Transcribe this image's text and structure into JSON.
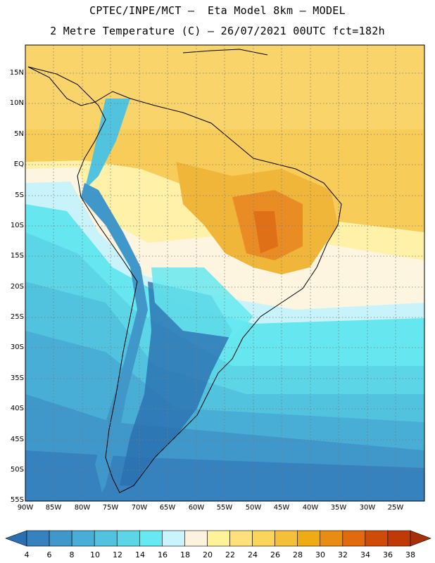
{
  "header": {
    "line1": "CPTEC/INPE/MCT –  Eta Model 8km – MODEL",
    "line2": "2 Metre Temperature (C) – 26/07/2021 00UTC fct=182h"
  },
  "map": {
    "lat_labels": [
      "15N",
      "10N",
      "5N",
      "EQ",
      "5S",
      "10S",
      "15S",
      "20S",
      "25S",
      "30S",
      "35S",
      "40S",
      "45S",
      "50S",
      "55S"
    ],
    "lon_labels": [
      "90W",
      "85W",
      "80W",
      "75W",
      "70W",
      "65W",
      "60W",
      "55W",
      "50W",
      "45W",
      "40W",
      "35W",
      "30W",
      "25W"
    ],
    "gridlines": "dotted"
  },
  "colorbar": {
    "ticks": [
      "4",
      "6",
      "8",
      "10",
      "12",
      "14",
      "16",
      "18",
      "20",
      "22",
      "24",
      "26",
      "28",
      "30",
      "32",
      "34",
      "36",
      "38"
    ],
    "colors": [
      "#2b6fb0",
      "#3582be",
      "#3f98c9",
      "#48aed5",
      "#52c3df",
      "#5cd6e6",
      "#66e9f0",
      "#c9f4fb",
      "#fbf3de",
      "#fff39a",
      "#ffe07a",
      "#fbd45a",
      "#f4c03a",
      "#efab14",
      "#e98c14",
      "#e06a0c",
      "#d04b08",
      "#c03a08",
      "#a83008"
    ]
  }
}
